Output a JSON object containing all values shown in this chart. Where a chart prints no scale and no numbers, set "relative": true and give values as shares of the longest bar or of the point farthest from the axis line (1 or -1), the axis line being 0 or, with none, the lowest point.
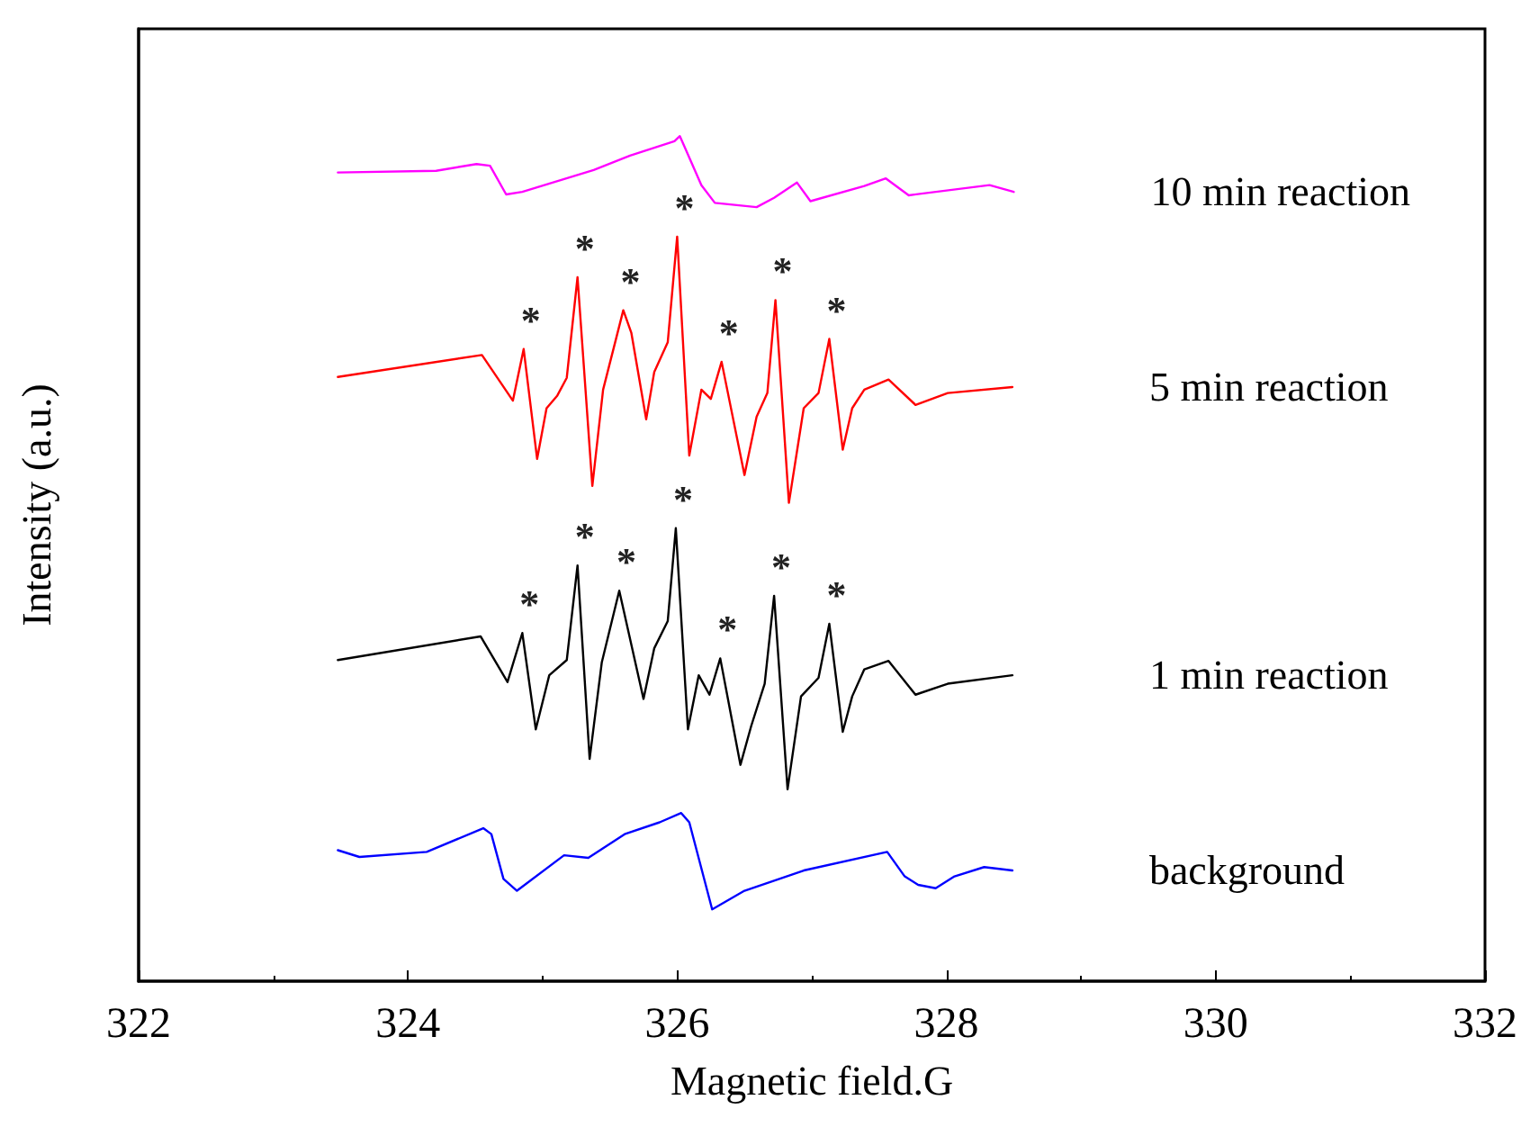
{
  "chart_data": {
    "type": "line",
    "xlabel": "Magnetic field.G",
    "ylabel": "Intensity (a.u.)",
    "relative": true,
    "xlim": [
      322,
      332
    ],
    "xticks": [
      322,
      324,
      326,
      328,
      330,
      332
    ],
    "grid": false,
    "legend": false,
    "marker": "none",
    "line_style": "solid",
    "series": [
      {
        "name": "10 min reaction",
        "color": "#ff00ff",
        "x": [
          323.48,
          324.21,
          324.51,
          324.61,
          324.73,
          324.85,
          325.38,
          325.65,
          325.98,
          326.02,
          326.18,
          326.28,
          326.59,
          326.72,
          326.89,
          326.99,
          327.39,
          327.55,
          327.72,
          328.32,
          328.5
        ],
        "values": [
          0.957,
          0.959,
          0.967,
          0.965,
          0.931,
          0.934,
          0.96,
          0.977,
          0.994,
          1,
          0.942,
          0.921,
          0.916,
          0.927,
          0.945,
          0.923,
          0.941,
          0.95,
          0.93,
          0.942,
          0.934
        ]
      },
      {
        "name": "5 min reaction",
        "color": "#ff0000",
        "x": [
          323.48,
          324.55,
          324.78,
          324.86,
          324.96,
          325.03,
          325.11,
          325.18,
          325.26,
          325.37,
          325.45,
          325.6,
          325.66,
          325.77,
          325.83,
          325.93,
          326.0,
          326.09,
          326.18,
          326.25,
          326.33,
          326.5,
          326.59,
          326.67,
          326.73,
          326.83,
          326.94,
          327.05,
          327.13,
          327.23,
          327.3,
          327.39,
          327.57,
          327.77,
          328.01,
          328.49
        ],
        "values": [
          0.715,
          0.741,
          0.687,
          0.748,
          0.618,
          0.678,
          0.693,
          0.714,
          0.833,
          0.586,
          0.7,
          0.794,
          0.767,
          0.665,
          0.721,
          0.756,
          0.881,
          0.622,
          0.7,
          0.689,
          0.733,
          0.599,
          0.668,
          0.696,
          0.806,
          0.566,
          0.678,
          0.696,
          0.76,
          0.629,
          0.678,
          0.7,
          0.712,
          0.682,
          0.696,
          0.703
        ]
      },
      {
        "name": "1 min reaction",
        "color": "#000000",
        "x": [
          323.48,
          324.54,
          324.74,
          324.85,
          324.95,
          325.05,
          325.18,
          325.26,
          325.35,
          325.44,
          325.57,
          325.75,
          325.83,
          325.93,
          325.99,
          326.08,
          326.16,
          326.24,
          326.32,
          326.47,
          326.55,
          326.65,
          326.72,
          326.82,
          326.92,
          327.05,
          327.13,
          327.23,
          327.3,
          327.39,
          327.57,
          327.77,
          328.01,
          328.49
        ],
        "values": [
          0.38,
          0.408,
          0.354,
          0.412,
          0.298,
          0.362,
          0.38,
          0.492,
          0.263,
          0.377,
          0.462,
          0.334,
          0.394,
          0.426,
          0.536,
          0.298,
          0.362,
          0.339,
          0.382,
          0.256,
          0.302,
          0.352,
          0.456,
          0.227,
          0.337,
          0.359,
          0.423,
          0.295,
          0.337,
          0.369,
          0.379,
          0.339,
          0.352,
          0.362
        ]
      },
      {
        "name": "background",
        "color": "#0000ff",
        "x": [
          323.48,
          323.64,
          324.14,
          324.56,
          324.62,
          324.71,
          324.81,
          325.16,
          325.34,
          325.61,
          325.87,
          326.03,
          326.09,
          326.26,
          326.5,
          326.94,
          327.56,
          327.69,
          327.79,
          327.92,
          328.06,
          328.28,
          328.49
        ],
        "values": [
          0.155,
          0.147,
          0.153,
          0.181,
          0.174,
          0.121,
          0.107,
          0.149,
          0.146,
          0.174,
          0.188,
          0.199,
          0.188,
          0.085,
          0.107,
          0.131,
          0.153,
          0.124,
          0.114,
          0.11,
          0.124,
          0.135,
          0.131
        ]
      }
    ],
    "annotations": [
      {
        "text": "*",
        "x": 324.86,
        "y": 0.748
      },
      {
        "text": "*",
        "x": 325.26,
        "y": 0.833
      },
      {
        "text": "*",
        "x": 325.6,
        "y": 0.794
      },
      {
        "text": "*",
        "x": 326.0,
        "y": 0.881
      },
      {
        "text": "*",
        "x": 326.33,
        "y": 0.733
      },
      {
        "text": "*",
        "x": 326.73,
        "y": 0.806
      },
      {
        "text": "*",
        "x": 327.13,
        "y": 0.76
      },
      {
        "text": "*",
        "x": 324.85,
        "y": 0.412
      },
      {
        "text": "*",
        "x": 325.26,
        "y": 0.492
      },
      {
        "text": "*",
        "x": 325.57,
        "y": 0.462
      },
      {
        "text": "*",
        "x": 325.99,
        "y": 0.536
      },
      {
        "text": "*",
        "x": 326.32,
        "y": 0.382
      },
      {
        "text": "*",
        "x": 326.72,
        "y": 0.456
      },
      {
        "text": "*",
        "x": 327.13,
        "y": 0.423
      }
    ]
  }
}
